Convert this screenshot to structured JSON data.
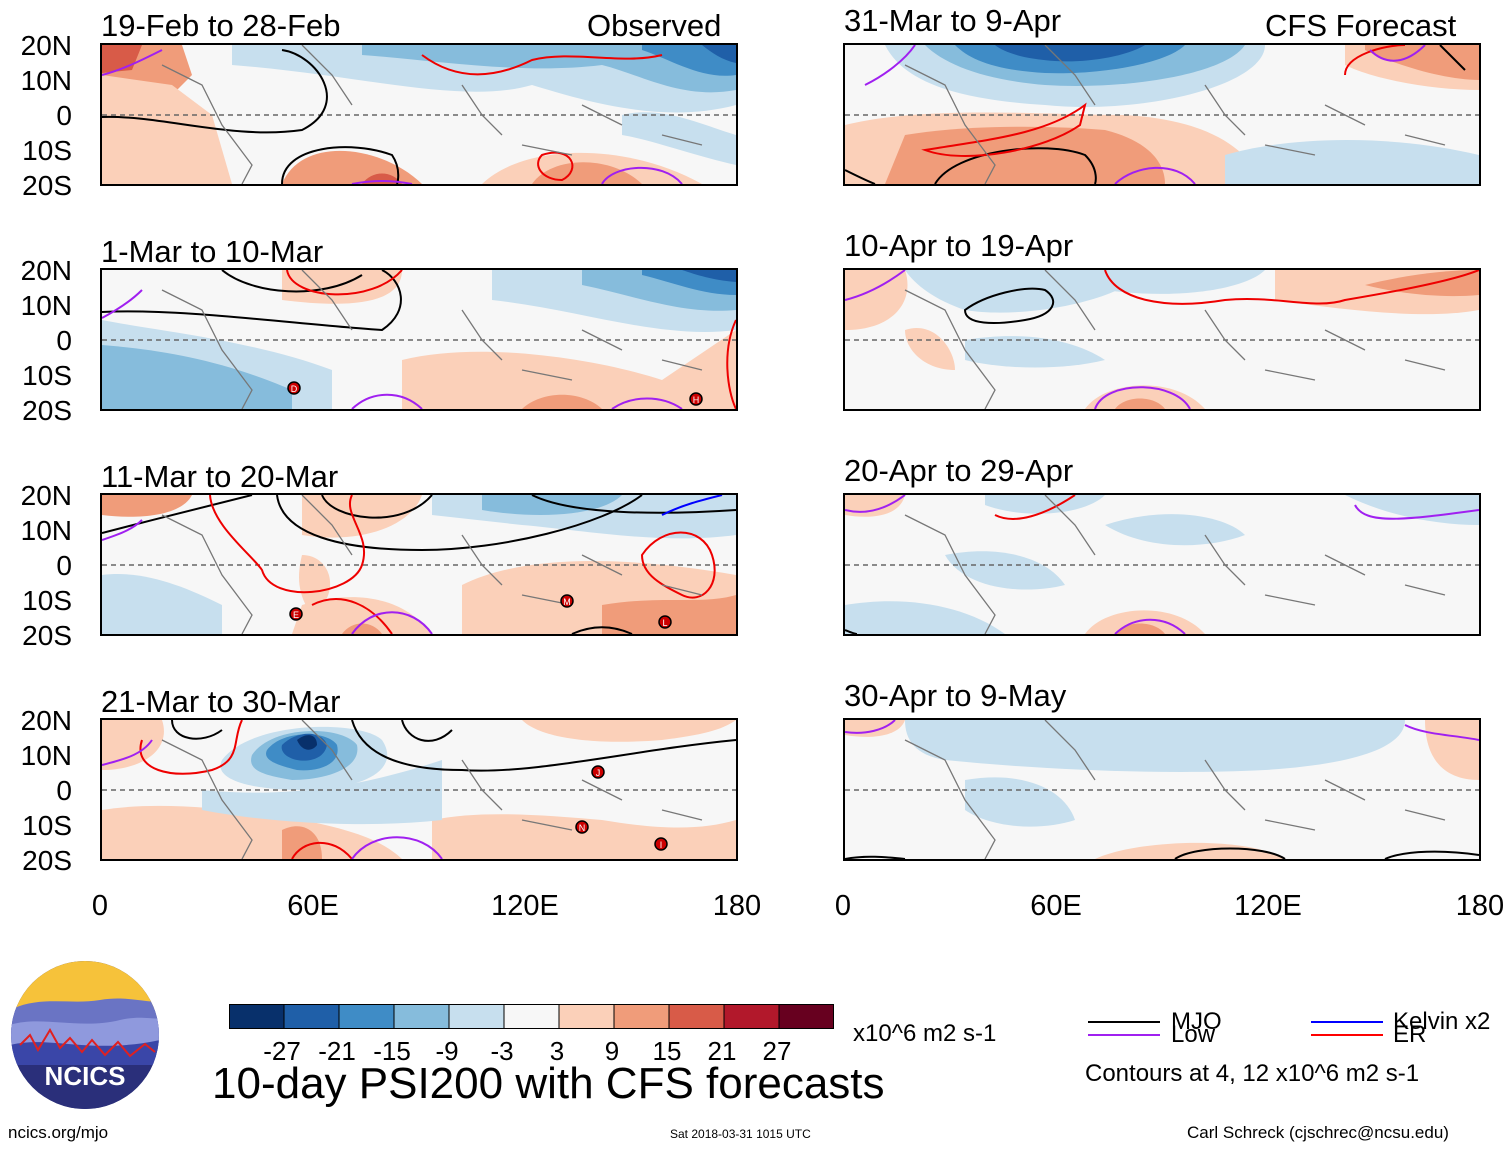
{
  "header": {
    "left_tag": "Observed",
    "right_tag": "CFS Forecast"
  },
  "axes": {
    "lat_labels": [
      "20N",
      "10N",
      "0",
      "10S",
      "20S"
    ],
    "lon_labels": [
      "0",
      "60E",
      "120E",
      "180"
    ]
  },
  "panels": {
    "left": [
      {
        "title": "19-Feb to 28-Feb"
      },
      {
        "title": "1-Mar to 10-Mar"
      },
      {
        "title": "11-Mar to 20-Mar"
      },
      {
        "title": "21-Mar to 30-Mar"
      }
    ],
    "right": [
      {
        "title": "31-Mar to 9-Apr"
      },
      {
        "title": "10-Apr to 19-Apr"
      },
      {
        "title": "20-Apr to 29-Apr"
      },
      {
        "title": "30-Apr to 9-May"
      }
    ]
  },
  "colorbar": {
    "tick_labels": [
      "-27",
      "-21",
      "-15",
      "-9",
      "-3",
      "3",
      "9",
      "15",
      "21",
      "27"
    ],
    "colors": [
      "#08306b",
      "#1f5fa8",
      "#3f8cc6",
      "#86bcdc",
      "#c7dfee",
      "#f7f7f7",
      "#fbd0b9",
      "#f09c7a",
      "#d85b48",
      "#b2182b",
      "#67001f"
    ],
    "units": "x10^6 m2 s-1"
  },
  "legend": {
    "items": [
      {
        "label": "MJO",
        "color": "#000000"
      },
      {
        "label": "Kelvin x2",
        "color": "#0000ff"
      },
      {
        "label": "Low",
        "color": "#a020f0"
      },
      {
        "label": "ER",
        "color": "#ff0000"
      }
    ],
    "note": "Contours at 4, 12 x10^6 m2 s-1"
  },
  "footer": {
    "title": "10-day PSI200 with CFS forecasts",
    "logo_text": "NCICS",
    "url": "ncics.org/mjo",
    "timestamp": "Sat 2018-03-31 1015 UTC",
    "credit": "Carl Schreck (cjschrec@ncsu.edu)"
  },
  "storm_markers": {
    "p1": [
      "D",
      "H"
    ],
    "p2": [
      "E",
      "M",
      "L"
    ],
    "p3": [
      "J",
      "N",
      "I"
    ]
  }
}
